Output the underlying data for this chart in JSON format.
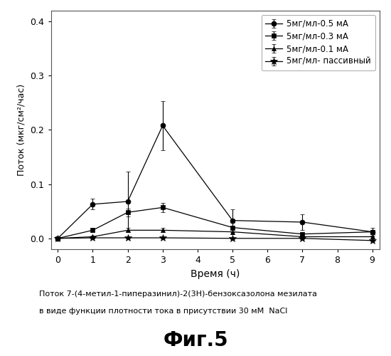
{
  "x": [
    0,
    1,
    2,
    3,
    5,
    7,
    9
  ],
  "series": [
    {
      "label": "5мг/мл-0.5 мА",
      "y": [
        0.0,
        0.063,
        0.068,
        0.208,
        0.033,
        0.03,
        0.012
      ],
      "yerr": [
        0.0,
        0.01,
        0.055,
        0.045,
        0.02,
        0.015,
        0.007
      ],
      "marker": "o",
      "markersize": 5,
      "color": "#000000",
      "linestyle": "-"
    },
    {
      "label": "5мг/мл-0.3 мА",
      "y": [
        0.0,
        0.015,
        0.048,
        0.057,
        0.02,
        0.008,
        0.012
      ],
      "yerr": [
        0.0,
        0.004,
        0.007,
        0.009,
        0.009,
        0.004,
        0.004
      ],
      "marker": "s",
      "markersize": 5,
      "color": "#000000",
      "linestyle": "-"
    },
    {
      "label": "5мг/мл-0.1 мА",
      "y": [
        0.0,
        0.003,
        0.015,
        0.015,
        0.012,
        0.003,
        0.003
      ],
      "yerr": [
        0.0,
        0.002,
        0.004,
        0.004,
        0.004,
        0.002,
        0.002
      ],
      "marker": "^",
      "markersize": 5,
      "color": "#000000",
      "linestyle": "-"
    },
    {
      "label": "5мг/мл- пассивный",
      "y": [
        0.0,
        0.001,
        0.001,
        0.001,
        0.0,
        0.0,
        -0.004
      ],
      "yerr": [
        0.0,
        0.001,
        0.001,
        0.001,
        0.001,
        0.001,
        0.001
      ],
      "marker": "*",
      "markersize": 7,
      "color": "#000000",
      "linestyle": "-"
    }
  ],
  "xlabel": "Время (ч)",
  "ylabel": "Поток (мкг/см²/час)",
  "xlim": [
    -0.2,
    9.2
  ],
  "ylim": [
    -0.02,
    0.42
  ],
  "yticks": [
    0.0,
    0.1,
    0.2,
    0.3,
    0.4
  ],
  "xticks": [
    0,
    1,
    2,
    3,
    4,
    5,
    6,
    7,
    8,
    9
  ],
  "caption_line1": "Поток 7-(4-метил-1-пиперазинил)-2(3Н)-бензоксазолона мезилата",
  "caption_line2": "в виде функции плотности тока в присутствии 30 мМ  NaCl",
  "figure_label": "Фиг.5",
  "background_color": "#ffffff"
}
